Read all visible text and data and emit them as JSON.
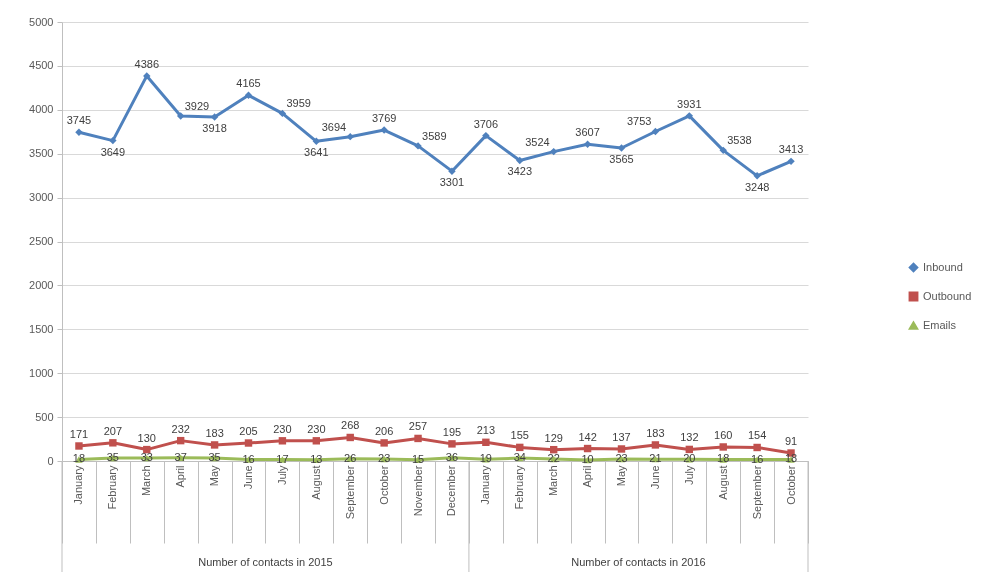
{
  "chart_data": {
    "type": "line",
    "categories": [
      "January",
      "February",
      "March",
      "April",
      "May",
      "June",
      "July",
      "August",
      "September",
      "October",
      "November",
      "December",
      "January",
      "February",
      "March",
      "April",
      "May",
      "June",
      "July",
      "August",
      "September",
      "October"
    ],
    "series": [
      {
        "name": "Inbound",
        "color": "#4f81bd",
        "marker": "diamond",
        "values": [
          3745,
          3649,
          4386,
          3929,
          3918,
          4165,
          3959,
          3641,
          3694,
          3769,
          3589,
          3301,
          3706,
          3423,
          3524,
          3607,
          3565,
          3753,
          3931,
          3538,
          3248,
          3413
        ]
      },
      {
        "name": "Outbound",
        "color": "#c0504d",
        "marker": "square",
        "values": [
          171,
          207,
          130,
          232,
          183,
          205,
          230,
          230,
          268,
          206,
          257,
          195,
          213,
          155,
          129,
          142,
          137,
          183,
          132,
          160,
          154,
          91
        ]
      },
      {
        "name": "Emails",
        "color": "#9bbb59",
        "marker": "triangle",
        "values": [
          18,
          35,
          33,
          37,
          35,
          16,
          17,
          13,
          26,
          23,
          15,
          36,
          19,
          34,
          22,
          10,
          23,
          21,
          20,
          18,
          16,
          18
        ]
      }
    ],
    "ylim": [
      0,
      5000
    ],
    "yticks": [
      0,
      500,
      1000,
      1500,
      2000,
      2500,
      3000,
      3500,
      4000,
      4500,
      5000
    ],
    "grid": "y",
    "legend": "right",
    "data_labels": true,
    "annotations": [
      "Number of contacts in 2015",
      "Number of contacts in 2016"
    ]
  }
}
